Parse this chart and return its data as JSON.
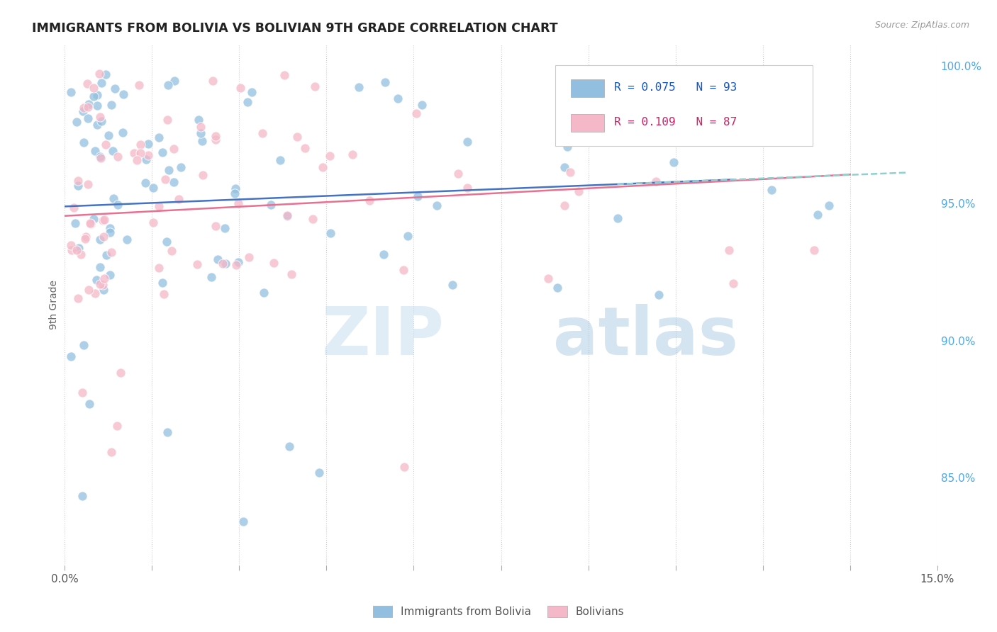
{
  "title": "IMMIGRANTS FROM BOLIVIA VS BOLIVIAN 9TH GRADE CORRELATION CHART",
  "source": "Source: ZipAtlas.com",
  "ylabel": "9th Grade",
  "xlim": [
    0.0,
    0.15
  ],
  "ylim": [
    0.818,
    1.008
  ],
  "legend1_R": "0.075",
  "legend1_N": "93",
  "legend2_R": "0.109",
  "legend2_N": "87",
  "blue_color": "#92bfe0",
  "pink_color": "#f5b8c8",
  "blue_line_color": "#4472c4",
  "pink_line_color": "#e87090",
  "dashed_line_color": "#90d0d0",
  "label_blue": "Immigrants from Bolivia",
  "label_pink": "Bolivians",
  "watermark_zip": "ZIP",
  "watermark_atlas": "atlas",
  "ytick_vals": [
    0.85,
    0.9,
    0.95,
    1.0
  ],
  "ytick_labels": [
    "85.0%",
    "90.0%",
    "95.0%",
    "100.0%"
  ],
  "seed": 12345
}
